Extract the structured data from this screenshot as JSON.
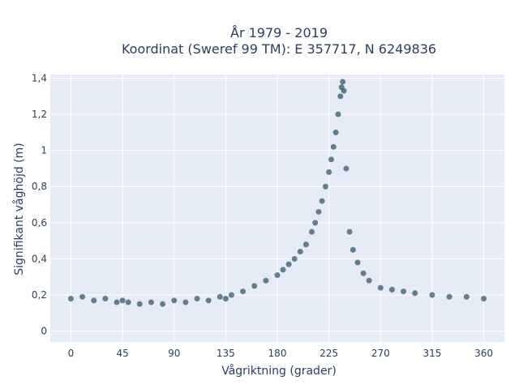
{
  "chart_data": {
    "type": "scatter",
    "title_line1": "År 1979 - 2019",
    "title_line2": "Koordinat (Sweref 99 TM): E 357717, N 6249836",
    "xlabel": "Vågriktning (grader)",
    "ylabel": "Signifikant våghöjd (m)",
    "xlim": [
      -18,
      378
    ],
    "ylim": [
      -0.06,
      1.42
    ],
    "xticks": [
      0,
      45,
      90,
      135,
      180,
      225,
      270,
      315,
      360
    ],
    "xtick_labels": [
      "0",
      "45",
      "90",
      "135",
      "180",
      "225",
      "270",
      "315",
      "360"
    ],
    "yticks": [
      0,
      0.2,
      0.4,
      0.6,
      0.8,
      1,
      1.2,
      1.4
    ],
    "ytick_labels": [
      "0",
      "0,2",
      "0,4",
      "0,6",
      "0,8",
      "1",
      "1,2",
      "1,4"
    ],
    "grid": true,
    "marker_color": "#34596f",
    "plot_background": "#e5ecf6",
    "series": [
      {
        "x": [
          0,
          10,
          20,
          30,
          40,
          45,
          50,
          60,
          70,
          80,
          90,
          100,
          110,
          120,
          130,
          135,
          140,
          150,
          160,
          170,
          180,
          185,
          190,
          195,
          200,
          205,
          210,
          213,
          216,
          219,
          222,
          225,
          227,
          229,
          231,
          233,
          235,
          236,
          237,
          238,
          240,
          243,
          246,
          250,
          255,
          260,
          270,
          280,
          290,
          300,
          315,
          330,
          345,
          360
        ],
        "y": [
          0.18,
          0.19,
          0.17,
          0.18,
          0.16,
          0.17,
          0.16,
          0.15,
          0.16,
          0.15,
          0.17,
          0.16,
          0.18,
          0.17,
          0.19,
          0.18,
          0.2,
          0.22,
          0.25,
          0.28,
          0.31,
          0.34,
          0.37,
          0.4,
          0.44,
          0.48,
          0.55,
          0.6,
          0.66,
          0.72,
          0.8,
          0.88,
          0.95,
          1.02,
          1.1,
          1.2,
          1.3,
          1.35,
          1.38,
          1.33,
          0.9,
          0.55,
          0.45,
          0.38,
          0.32,
          0.28,
          0.24,
          0.23,
          0.22,
          0.21,
          0.2,
          0.19,
          0.19,
          0.18
        ]
      }
    ]
  }
}
